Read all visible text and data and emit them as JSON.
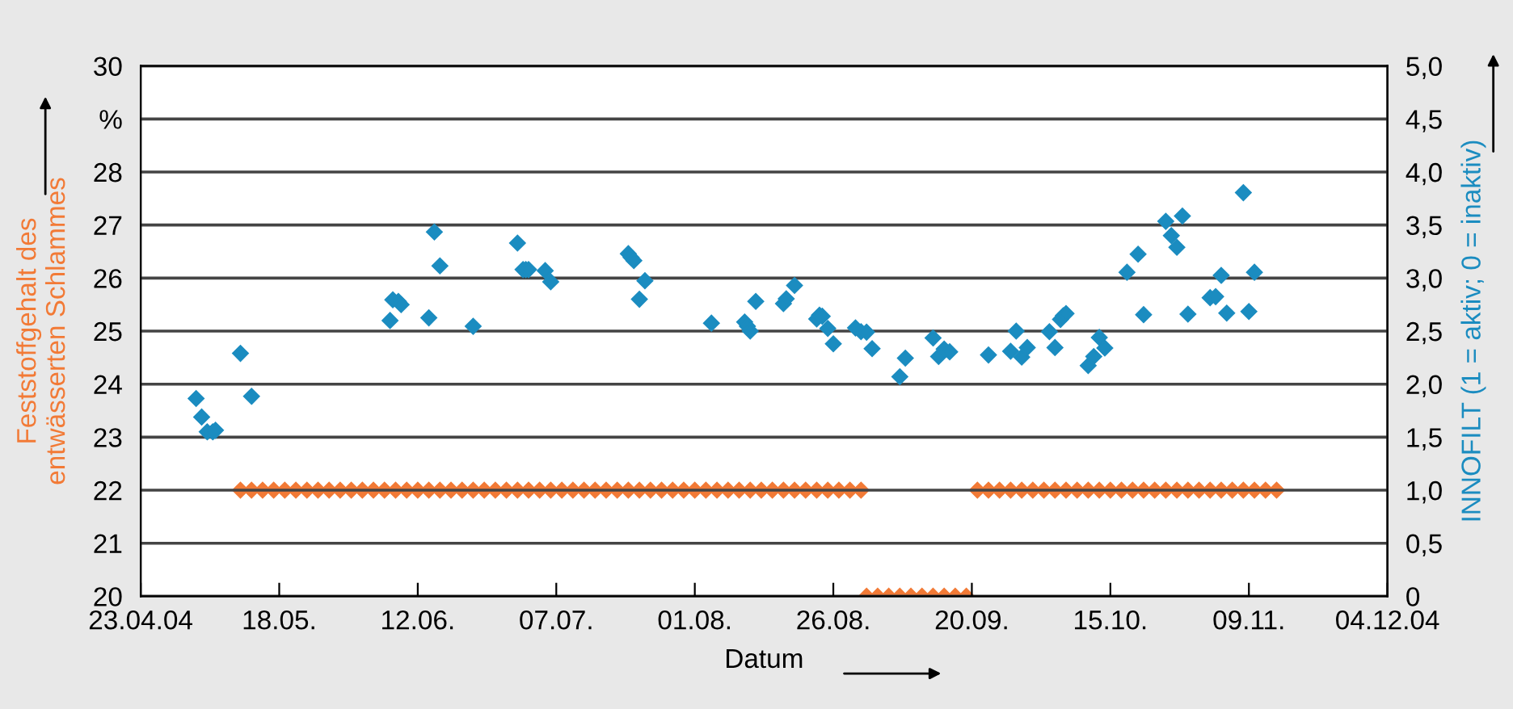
{
  "chart_data": {
    "type": "scatter",
    "xlabel": "Datum",
    "ylabel": "Feststoffgehalt des\nentwässerten Schlammes",
    "y2label": "INNOFILT (1 = aktiv; 0 = inaktiv)",
    "xlim": [
      "2004-04-23",
      "2004-12-04"
    ],
    "xticks": [
      {
        "value": "2004-04-23",
        "label": "23.04.04"
      },
      {
        "value": "2004-05-18",
        "label": "18.05."
      },
      {
        "value": "2004-06-12",
        "label": "12.06."
      },
      {
        "value": "2004-07-07",
        "label": "07.07."
      },
      {
        "value": "2004-08-01",
        "label": "01.08."
      },
      {
        "value": "2004-08-26",
        "label": "26.08."
      },
      {
        "value": "2004-09-20",
        "label": "20.09."
      },
      {
        "value": "2004-10-15",
        "label": "15.10."
      },
      {
        "value": "2004-11-09",
        "label": "09.11."
      },
      {
        "value": "2004-12-04",
        "label": "04.12.04"
      }
    ],
    "ylim": [
      20,
      30
    ],
    "yticks": [
      20,
      21,
      22,
      23,
      24,
      25,
      26,
      27,
      28,
      {
        "value": 29,
        "label": "%"
      },
      30
    ],
    "y2lim": [
      0,
      5
    ],
    "y2ticks": [
      0,
      {
        "value": 0.5,
        "label": "0,5"
      },
      {
        "value": 1,
        "label": "1,0"
      },
      {
        "value": 1.5,
        "label": "1,5"
      },
      {
        "value": 2,
        "label": "2,0"
      },
      {
        "value": 2.5,
        "label": "2,5"
      },
      {
        "value": 3,
        "label": "3,0"
      },
      {
        "value": 3.5,
        "label": "3,5"
      },
      {
        "value": 4,
        "label": "4,0"
      },
      {
        "value": 4.5,
        "label": "4,5"
      },
      {
        "value": 5,
        "label": "5,0"
      }
    ],
    "grid": "y",
    "marker": "diamond",
    "legend": false,
    "series": [
      {
        "color": "#1b8cc0",
        "x": [
          "2004-05-03",
          "2004-05-04",
          "2004-05-05",
          "2004-05-06",
          "2004-05-06T12:00",
          "2004-05-11",
          "2004-05-13",
          "2004-06-07",
          "2004-06-07T12:00",
          "2004-06-08T12:00",
          "2004-06-09",
          "2004-06-14",
          "2004-06-15",
          "2004-06-16",
          "2004-06-22",
          "2004-06-30",
          "2004-07-01",
          "2004-07-01T12:00",
          "2004-07-02",
          "2004-07-05",
          "2004-07-06",
          "2004-07-20",
          "2004-07-20T12:00",
          "2004-07-21",
          "2004-07-22",
          "2004-07-23",
          "2004-08-04",
          "2004-08-10",
          "2004-08-10T12:00",
          "2004-08-11",
          "2004-08-12",
          "2004-08-17",
          "2004-08-17T12:00",
          "2004-08-19",
          "2004-08-23",
          "2004-08-23T12:00",
          "2004-08-24",
          "2004-08-25",
          "2004-08-26",
          "2004-08-30",
          "2004-08-31",
          "2004-09-01",
          "2004-09-02",
          "2004-09-07",
          "2004-09-08",
          "2004-09-13",
          "2004-09-14",
          "2004-09-15",
          "2004-09-16",
          "2004-09-23",
          "2004-09-27",
          "2004-09-28",
          "2004-09-29",
          "2004-09-30",
          "2004-10-04",
          "2004-10-05",
          "2004-10-06",
          "2004-10-06T12:00",
          "2004-10-07",
          "2004-10-11",
          "2004-10-12",
          "2004-10-13",
          "2004-10-14",
          "2004-10-18",
          "2004-10-20",
          "2004-10-21",
          "2004-10-25",
          "2004-10-26",
          "2004-10-27",
          "2004-10-28",
          "2004-10-29",
          "2004-11-02",
          "2004-11-03",
          "2004-11-04",
          "2004-11-05",
          "2004-11-08",
          "2004-11-09",
          "2004-11-10"
        ],
        "values": [
          23.73,
          23.38,
          23.1,
          23.1,
          23.13,
          24.58,
          23.77,
          25.2,
          25.59,
          25.56,
          25.5,
          25.25,
          26.87,
          26.23,
          25.09,
          26.66,
          26.16,
          26.16,
          26.16,
          26.14,
          25.93,
          26.46,
          26.39,
          26.33,
          25.6,
          25.95,
          25.15,
          25.17,
          25.09,
          25.0,
          25.56,
          25.52,
          25.61,
          25.86,
          25.23,
          25.3,
          25.28,
          25.05,
          24.76,
          25.06,
          24.99,
          24.98,
          24.67,
          24.14,
          24.49,
          24.87,
          24.52,
          24.66,
          24.61,
          24.55,
          24.62,
          25.0,
          24.51,
          24.69,
          24.99,
          24.69,
          25.22,
          25.29,
          25.33,
          24.35,
          24.52,
          24.88,
          24.68,
          26.11,
          26.45,
          25.31,
          27.07,
          26.8,
          26.58,
          27.17,
          25.32,
          25.63,
          25.65,
          26.05,
          25.34,
          27.61,
          25.37,
          26.11
        ]
      },
      {
        "color": "#f27a36",
        "axis": "y2",
        "x": [
          "2004-05-11",
          "2004-05-13",
          "2004-05-15",
          "2004-05-17",
          "2004-05-19",
          "2004-05-21",
          "2004-05-23",
          "2004-05-25",
          "2004-05-27",
          "2004-05-29",
          "2004-05-31",
          "2004-06-02",
          "2004-06-04",
          "2004-06-06",
          "2004-06-08",
          "2004-06-10",
          "2004-06-12",
          "2004-06-14",
          "2004-06-16",
          "2004-06-18",
          "2004-06-20",
          "2004-06-22",
          "2004-06-24",
          "2004-06-26",
          "2004-06-28",
          "2004-06-30",
          "2004-07-02",
          "2004-07-04",
          "2004-07-06",
          "2004-07-08",
          "2004-07-10",
          "2004-07-12",
          "2004-07-14",
          "2004-07-16",
          "2004-07-18",
          "2004-07-20",
          "2004-07-22",
          "2004-07-24",
          "2004-07-26",
          "2004-07-28",
          "2004-07-30",
          "2004-08-01",
          "2004-08-03",
          "2004-08-05",
          "2004-08-07",
          "2004-08-09",
          "2004-08-11",
          "2004-08-13",
          "2004-08-15",
          "2004-08-17",
          "2004-08-19",
          "2004-08-21",
          "2004-08-23",
          "2004-08-25",
          "2004-08-27",
          "2004-08-29",
          "2004-08-31",
          "2004-09-01",
          "2004-09-03",
          "2004-09-05",
          "2004-09-07",
          "2004-09-09",
          "2004-09-11",
          "2004-09-13",
          "2004-09-15",
          "2004-09-17",
          "2004-09-19",
          "2004-09-21",
          "2004-09-23",
          "2004-09-25",
          "2004-09-27",
          "2004-09-29",
          "2004-10-01",
          "2004-10-03",
          "2004-10-05",
          "2004-10-07",
          "2004-10-09",
          "2004-10-11",
          "2004-10-13",
          "2004-10-15",
          "2004-10-17",
          "2004-10-19",
          "2004-10-21",
          "2004-10-23",
          "2004-10-25",
          "2004-10-27",
          "2004-10-29",
          "2004-10-31",
          "2004-11-02",
          "2004-11-04",
          "2004-11-06",
          "2004-11-08",
          "2004-11-10",
          "2004-11-12",
          "2004-11-14"
        ],
        "values": [
          1,
          1,
          1,
          1,
          1,
          1,
          1,
          1,
          1,
          1,
          1,
          1,
          1,
          1,
          1,
          1,
          1,
          1,
          1,
          1,
          1,
          1,
          1,
          1,
          1,
          1,
          1,
          1,
          1,
          1,
          1,
          1,
          1,
          1,
          1,
          1,
          1,
          1,
          1,
          1,
          1,
          1,
          1,
          1,
          1,
          1,
          1,
          1,
          1,
          1,
          1,
          1,
          1,
          1,
          1,
          1,
          1,
          0,
          0,
          0,
          0,
          0,
          0,
          0,
          0,
          0,
          0,
          1,
          1,
          1,
          1,
          1,
          1,
          1,
          1,
          1,
          1,
          1,
          1,
          1,
          1,
          1,
          1,
          1,
          1,
          1,
          1,
          1,
          1,
          1,
          1,
          1,
          1,
          1,
          1
        ]
      }
    ]
  }
}
